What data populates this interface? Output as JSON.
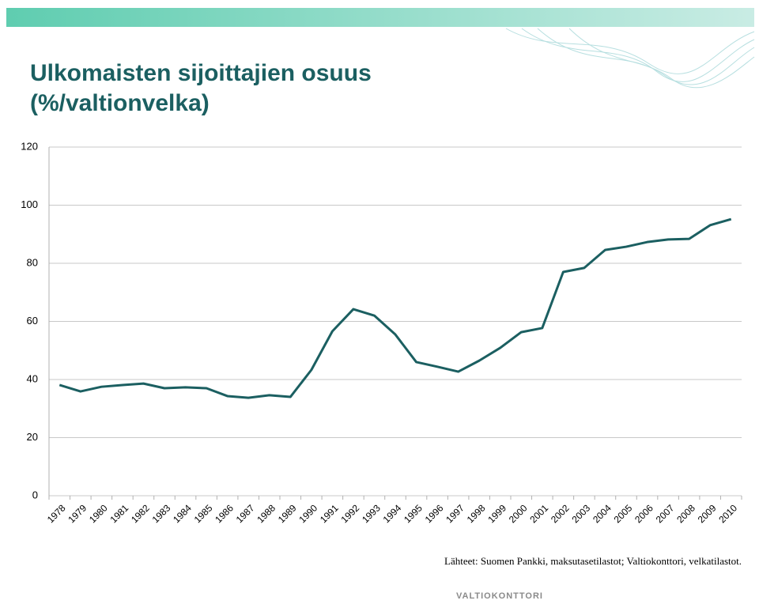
{
  "chart_data": {
    "type": "line",
    "title": [
      "Ulkomaisten sijoittajien osuus",
      "(%/valtionvelka)"
    ],
    "categories": [
      "1978",
      "1979",
      "1980",
      "1981",
      "1982",
      "1983",
      "1984",
      "1985",
      "1986",
      "1987",
      "1988",
      "1989",
      "1990",
      "1991",
      "1992",
      "1993",
      "1994",
      "1995",
      "1996",
      "1997",
      "1998",
      "1999",
      "2000",
      "2001",
      "2002",
      "2003",
      "2004",
      "2005",
      "2006",
      "2007",
      "2008",
      "2009",
      "2010"
    ],
    "series": [
      {
        "color": "#1b5f61",
        "values": [
          38.1,
          35.9,
          37.5,
          38.1,
          38.6,
          37.0,
          37.3,
          37.0,
          34.3,
          33.7,
          34.6,
          34.0,
          43.3,
          56.6,
          64.2,
          62.0,
          55.5,
          46.0,
          44.4,
          42.7,
          46.5,
          50.9,
          56.3,
          57.7,
          77.0,
          78.4,
          84.6,
          85.7,
          87.3,
          88.2,
          88.4,
          93.1,
          95.2
        ]
      }
    ],
    "ylim": [
      0,
      120
    ],
    "yticks": [
      0,
      20,
      40,
      60,
      80,
      100,
      120
    ],
    "grid": true,
    "source": "Lähteet: Suomen Pankki, maksutasetilastot; Valtiokonttori, velkatilastot.",
    "logo": "VALTIOKONTTORI"
  }
}
